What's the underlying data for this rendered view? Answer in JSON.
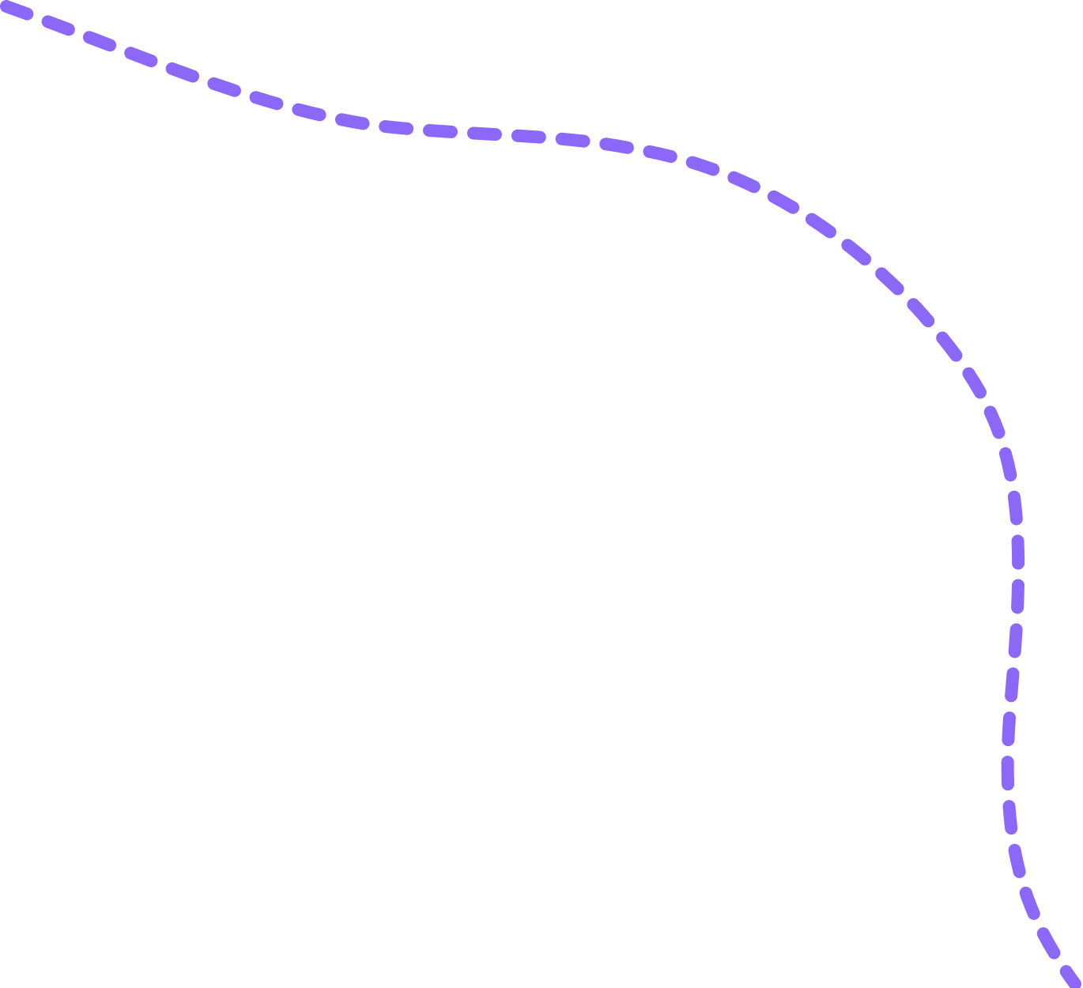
{
  "decoration": {
    "stroke_color": "#8C68F8",
    "background_color": "#FFFFFF",
    "line_style": "dashed",
    "icon": "dashed-curve-path"
  }
}
